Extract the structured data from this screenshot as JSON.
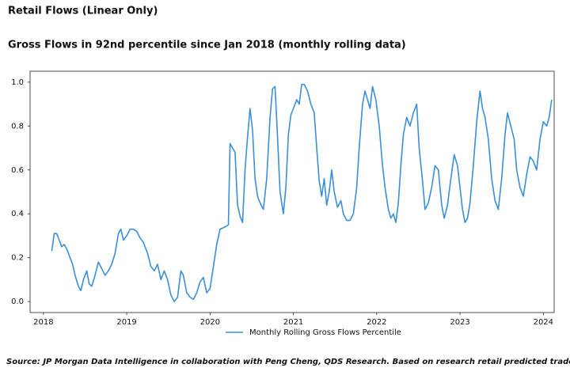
{
  "chart_data": {
    "type": "line",
    "title": "Retail Flows (Linear Only)",
    "subtitle": "Gross Flows in 92nd percentile since Jan 2018 (monthly rolling data)",
    "source": "Source: JP Morgan Data Intelligence in collaboration with Peng Cheng, QDS Research. Based on research retail predicted trades data set.",
    "xlim": [
      2017.84,
      2024.13
    ],
    "xticks": [
      2018,
      2019,
      2020,
      2021,
      2022,
      2023,
      2024
    ],
    "ylim": [
      -0.05,
      1.05
    ],
    "yticks": [
      {
        "value": 0,
        "label": "0.0"
      },
      0.2,
      0.4,
      0.6,
      0.8,
      {
        "value": 1,
        "label": "1.0"
      }
    ],
    "grid": false,
    "legend": "bottom",
    "x": [
      2018.1,
      2018.13,
      2018.16,
      2018.19,
      2018.22,
      2018.25,
      2018.28,
      2018.32,
      2018.35,
      2018.38,
      2018.42,
      2018.45,
      2018.48,
      2018.52,
      2018.55,
      2018.58,
      2018.62,
      2018.66,
      2018.7,
      2018.74,
      2018.78,
      2018.82,
      2018.86,
      2018.9,
      2018.93,
      2018.96,
      2019.0,
      2019.04,
      2019.08,
      2019.12,
      2019.16,
      2019.2,
      2019.25,
      2019.29,
      2019.33,
      2019.37,
      2019.41,
      2019.45,
      2019.49,
      2019.53,
      2019.57,
      2019.61,
      2019.65,
      2019.68,
      2019.72,
      2019.76,
      2019.8,
      2019.84,
      2019.88,
      2019.92,
      2019.96,
      2020.0,
      2020.04,
      2020.08,
      2020.12,
      2020.18,
      2020.22,
      2020.24,
      2020.27,
      2020.3,
      2020.33,
      2020.36,
      2020.39,
      2020.42,
      2020.45,
      2020.48,
      2020.51,
      2020.54,
      2020.57,
      2020.6,
      2020.64,
      2020.68,
      2020.72,
      2020.75,
      2020.78,
      2020.81,
      2020.84,
      2020.88,
      2020.91,
      2020.94,
      2020.97,
      2021.0,
      2021.04,
      2021.07,
      2021.1,
      2021.13,
      2021.17,
      2021.21,
      2021.25,
      2021.28,
      2021.31,
      2021.34,
      2021.37,
      2021.4,
      2021.43,
      2021.46,
      2021.49,
      2021.53,
      2021.57,
      2021.6,
      2021.64,
      2021.68,
      2021.72,
      2021.76,
      2021.79,
      2021.83,
      2021.86,
      2021.89,
      2021.92,
      2021.95,
      2021.99,
      2022.03,
      2022.07,
      2022.1,
      2022.14,
      2022.17,
      2022.2,
      2022.23,
      2022.26,
      2022.29,
      2022.32,
      2022.36,
      2022.4,
      2022.44,
      2022.48,
      2022.51,
      2022.55,
      2022.58,
      2022.62,
      2022.66,
      2022.7,
      2022.74,
      2022.78,
      2022.81,
      2022.85,
      2022.89,
      2022.93,
      2022.97,
      2023.0,
      2023.03,
      2023.06,
      2023.09,
      2023.12,
      2023.16,
      2023.2,
      2023.24,
      2023.27,
      2023.3,
      2023.34,
      2023.38,
      2023.42,
      2023.46,
      2023.5,
      2023.54,
      2023.57,
      2023.61,
      2023.65,
      2023.68,
      2023.72,
      2023.76,
      2023.8,
      2023.84,
      2023.88,
      2023.92,
      2023.96,
      2024.0,
      2024.04,
      2024.07,
      2024.1
    ],
    "series": [
      {
        "name": "Monthly Rolling Gross Flows Percentile",
        "color": "#3b8fd9",
        "values": [
          0.23,
          0.31,
          0.31,
          0.28,
          0.25,
          0.26,
          0.24,
          0.2,
          0.17,
          0.12,
          0.07,
          0.05,
          0.1,
          0.14,
          0.08,
          0.07,
          0.12,
          0.18,
          0.15,
          0.12,
          0.14,
          0.17,
          0.22,
          0.31,
          0.33,
          0.28,
          0.3,
          0.33,
          0.33,
          0.32,
          0.29,
          0.27,
          0.22,
          0.16,
          0.14,
          0.17,
          0.1,
          0.14,
          0.1,
          0.03,
          0.0,
          0.02,
          0.14,
          0.12,
          0.04,
          0.02,
          0.01,
          0.04,
          0.09,
          0.11,
          0.04,
          0.06,
          0.16,
          0.26,
          0.33,
          0.34,
          0.35,
          0.72,
          0.7,
          0.68,
          0.44,
          0.39,
          0.36,
          0.6,
          0.75,
          0.88,
          0.78,
          0.56,
          0.48,
          0.45,
          0.42,
          0.56,
          0.84,
          0.97,
          0.98,
          0.75,
          0.5,
          0.4,
          0.52,
          0.76,
          0.85,
          0.88,
          0.92,
          0.9,
          0.99,
          0.99,
          0.96,
          0.9,
          0.86,
          0.7,
          0.55,
          0.48,
          0.56,
          0.44,
          0.5,
          0.6,
          0.5,
          0.43,
          0.46,
          0.4,
          0.37,
          0.37,
          0.4,
          0.52,
          0.7,
          0.9,
          0.96,
          0.92,
          0.88,
          0.98,
          0.92,
          0.8,
          0.62,
          0.52,
          0.42,
          0.38,
          0.4,
          0.36,
          0.45,
          0.62,
          0.76,
          0.84,
          0.8,
          0.86,
          0.9,
          0.7,
          0.55,
          0.42,
          0.45,
          0.52,
          0.62,
          0.6,
          0.44,
          0.38,
          0.44,
          0.56,
          0.67,
          0.62,
          0.52,
          0.42,
          0.36,
          0.38,
          0.45,
          0.62,
          0.82,
          0.96,
          0.88,
          0.84,
          0.74,
          0.56,
          0.46,
          0.42,
          0.56,
          0.76,
          0.86,
          0.8,
          0.74,
          0.6,
          0.52,
          0.48,
          0.58,
          0.66,
          0.64,
          0.6,
          0.74,
          0.82,
          0.8,
          0.84,
          0.92
        ]
      }
    ]
  }
}
